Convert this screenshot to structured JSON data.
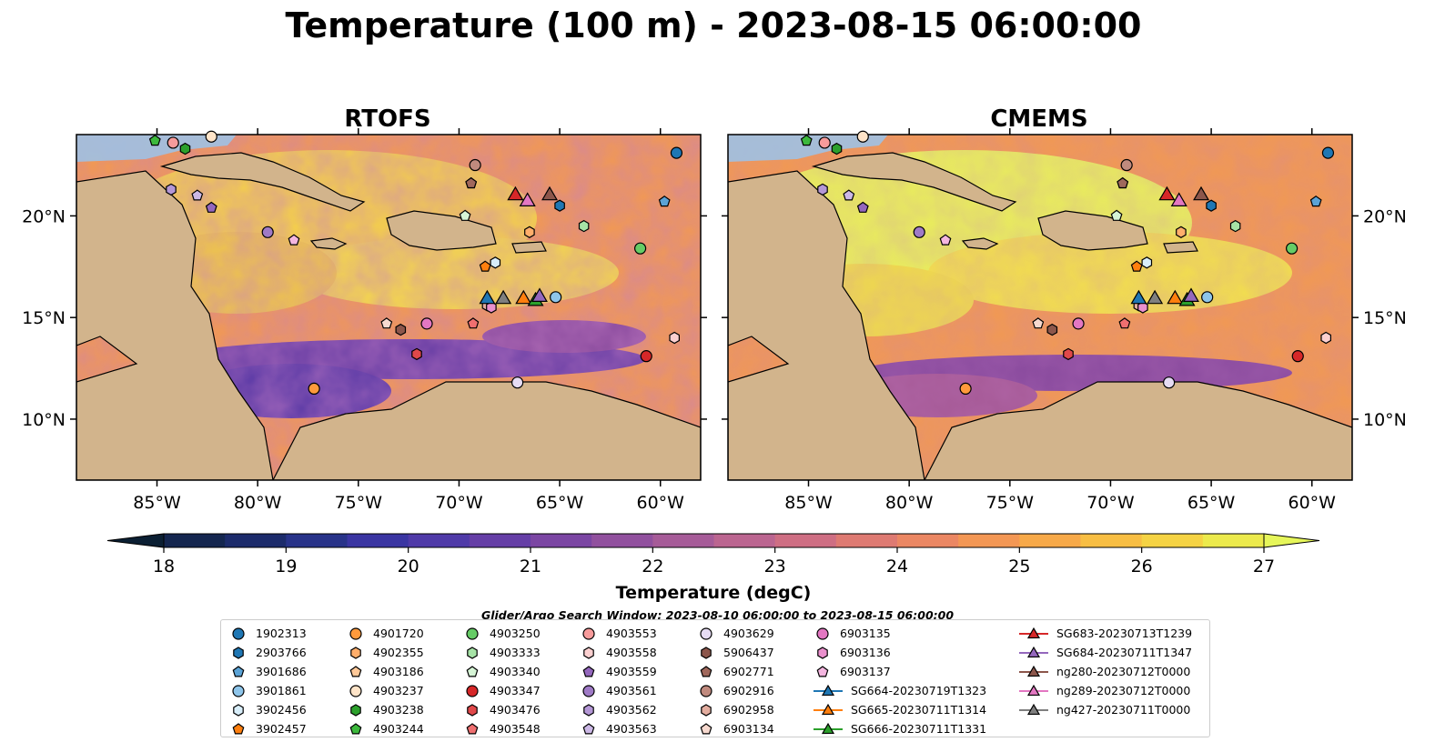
{
  "title": "Temperature (100 m) - 2023-08-15 06:00:00",
  "panels": [
    {
      "title": "RTOFS"
    },
    {
      "title": "CMEMS"
    }
  ],
  "axes": {
    "lon_ticks": [
      -85,
      -80,
      -75,
      -70,
      -65,
      -60
    ],
    "lon_labels": [
      "85°W",
      "80°W",
      "75°W",
      "70°W",
      "65°W",
      "60°W"
    ],
    "lat_ticks": [
      10,
      15,
      20
    ],
    "lat_labels": [
      "10°N",
      "15°N",
      "20°N"
    ],
    "lon_range": [
      -89,
      -58
    ],
    "lat_range": [
      7,
      24
    ]
  },
  "colorbar": {
    "label": "Temperature (degC)",
    "min": 18,
    "max": 27,
    "ticks": [
      "18",
      "19",
      "20",
      "21",
      "22",
      "23",
      "24",
      "25",
      "26",
      "27"
    ],
    "colors": [
      "#0b1f33",
      "#14264f",
      "#1c2b6b",
      "#283389",
      "#3a35a2",
      "#4f3aa8",
      "#653ea6",
      "#7b46a3",
      "#91509e",
      "#a65b98",
      "#bb6590",
      "#ce6e83",
      "#de7a72",
      "#eb8763",
      "#f39754",
      "#f7a949",
      "#f8be43",
      "#f5d344",
      "#ecea4c",
      "#e6f65a"
    ]
  },
  "search_window": "Glider/Argo Search Window: 2023-08-10 06:00:00 to 2023-08-15 06:00:00",
  "legend": [
    [
      {
        "label": "1902313",
        "marker": "circle",
        "color": "#1f77b4"
      },
      {
        "label": "2903766",
        "marker": "hexagon",
        "color": "#1f77b4"
      },
      {
        "label": "3901686",
        "marker": "pentagon",
        "color": "#5ba3d6"
      },
      {
        "label": "3901861",
        "marker": "circle",
        "color": "#8ec5ea"
      },
      {
        "label": "3902456",
        "marker": "hexagon",
        "color": "#d8eefa"
      },
      {
        "label": "3902457",
        "marker": "pentagon",
        "color": "#ff7f0e"
      }
    ],
    [
      {
        "label": "4901720",
        "marker": "circle",
        "color": "#ff9a3c"
      },
      {
        "label": "4902355",
        "marker": "hexagon",
        "color": "#ffae6b"
      },
      {
        "label": "4903186",
        "marker": "pentagon",
        "color": "#ffc999"
      },
      {
        "label": "4903237",
        "marker": "circle",
        "color": "#ffe4c8"
      },
      {
        "label": "4903238",
        "marker": "hexagon",
        "color": "#2ca02c"
      },
      {
        "label": "4903244",
        "marker": "pentagon",
        "color": "#3cb83c"
      }
    ],
    [
      {
        "label": "4903250",
        "marker": "circle",
        "color": "#66cc66"
      },
      {
        "label": "4903333",
        "marker": "hexagon",
        "color": "#a6e3a6"
      },
      {
        "label": "4903340",
        "marker": "pentagon",
        "color": "#d6f5d6"
      },
      {
        "label": "4903347",
        "marker": "circle",
        "color": "#d62728"
      },
      {
        "label": "4903476",
        "marker": "hexagon",
        "color": "#e0484a"
      },
      {
        "label": "4903548",
        "marker": "pentagon",
        "color": "#ef6f70"
      }
    ],
    [
      {
        "label": "4903553",
        "marker": "circle",
        "color": "#f79b9b"
      },
      {
        "label": "4903558",
        "marker": "hexagon",
        "color": "#fcd0d0"
      },
      {
        "label": "4903559",
        "marker": "pentagon",
        "color": "#9467bd"
      },
      {
        "label": "4903561",
        "marker": "circle",
        "color": "#9f7ac6"
      },
      {
        "label": "4903562",
        "marker": "hexagon",
        "color": "#b497d6"
      },
      {
        "label": "4903563",
        "marker": "pentagon",
        "color": "#ccb8e6"
      }
    ],
    [
      {
        "label": "4903629",
        "marker": "circle",
        "color": "#e6dcf4"
      },
      {
        "label": "5906437",
        "marker": "hexagon",
        "color": "#8c564b"
      },
      {
        "label": "6902771",
        "marker": "pentagon",
        "color": "#a0685c"
      },
      {
        "label": "6902916",
        "marker": "circle",
        "color": "#c08a7e"
      },
      {
        "label": "6902958",
        "marker": "hexagon",
        "color": "#e3ad9f"
      },
      {
        "label": "6903134",
        "marker": "pentagon",
        "color": "#f7d9cf"
      }
    ],
    [
      {
        "label": "6903135",
        "marker": "circle",
        "color": "#e377c2"
      },
      {
        "label": "6903136",
        "marker": "hexagon",
        "color": "#ea90cd"
      },
      {
        "label": "6903137",
        "marker": "pentagon",
        "color": "#f4b6e0"
      },
      {
        "label": "SG664-20230719T1323",
        "marker": "triangle",
        "color": "#1f77b4"
      },
      {
        "label": "SG665-20230711T1314",
        "marker": "triangle",
        "color": "#ff7f0e"
      },
      {
        "label": "SG666-20230711T1331",
        "marker": "triangle",
        "color": "#2ca02c"
      }
    ],
    [
      {
        "label": "SG683-20230713T1239",
        "marker": "triangle",
        "color": "#d62728"
      },
      {
        "label": "SG684-20230711T1347",
        "marker": "triangle",
        "color": "#9467bd"
      },
      {
        "label": "ng280-20230712T0000",
        "marker": "triangle",
        "color": "#8c564b"
      },
      {
        "label": "ng289-20230712T0000",
        "marker": "triangle",
        "color": "#e377c2"
      },
      {
        "label": "ng427-20230711T0000",
        "marker": "triangle",
        "color": "#7f7f7f"
      }
    ]
  ],
  "floats": [
    {
      "id": "1902313",
      "lon": -59.2,
      "lat": 23.1
    },
    {
      "id": "2903766",
      "lon": -65.0,
      "lat": 20.5
    },
    {
      "id": "3901686",
      "lon": -59.8,
      "lat": 20.7
    },
    {
      "id": "3901861",
      "lon": -65.2,
      "lat": 16.0
    },
    {
      "id": "3902456",
      "lon": -68.2,
      "lat": 17.7
    },
    {
      "id": "3902457",
      "lon": -68.7,
      "lat": 17.5
    },
    {
      "id": "4901720",
      "lon": -77.2,
      "lat": 11.5
    },
    {
      "id": "4902355",
      "lon": -66.5,
      "lat": 19.2
    },
    {
      "id": "4903186",
      "lon": -69.4,
      "lat": 21.6
    },
    {
      "id": "4903237",
      "lon": -82.3,
      "lat": 23.9
    },
    {
      "id": "4903238",
      "lon": -83.6,
      "lat": 23.3
    },
    {
      "id": "4903244",
      "lon": -85.1,
      "lat": 23.7
    },
    {
      "id": "4903250",
      "lon": -61.0,
      "lat": 18.4
    },
    {
      "id": "4903333",
      "lon": -63.8,
      "lat": 19.5
    },
    {
      "id": "4903340",
      "lon": -69.7,
      "lat": 20.0
    },
    {
      "id": "4903347",
      "lon": -60.7,
      "lat": 13.1
    },
    {
      "id": "4903476",
      "lon": -72.1,
      "lat": 13.2
    },
    {
      "id": "4903548",
      "lon": -69.3,
      "lat": 14.7
    },
    {
      "id": "4903553",
      "lon": -84.2,
      "lat": 23.6
    },
    {
      "id": "4903558",
      "lon": -59.3,
      "lat": 14.0
    },
    {
      "id": "4903559",
      "lon": -82.3,
      "lat": 20.4
    },
    {
      "id": "4903561",
      "lon": -79.5,
      "lat": 19.2
    },
    {
      "id": "4903562",
      "lon": -84.3,
      "lat": 21.3
    },
    {
      "id": "4903563",
      "lon": -83.0,
      "lat": 21.0
    },
    {
      "id": "4903629",
      "lon": -67.1,
      "lat": 11.8
    },
    {
      "id": "5906437",
      "lon": -72.9,
      "lat": 14.4
    },
    {
      "id": "6902771",
      "lon": -69.4,
      "lat": 21.6
    },
    {
      "id": "6902916",
      "lon": -69.2,
      "lat": 22.5
    },
    {
      "id": "6902958",
      "lon": -68.6,
      "lat": 15.6
    },
    {
      "id": "6903134",
      "lon": -73.6,
      "lat": 14.7
    },
    {
      "id": "6903135",
      "lon": -71.6,
      "lat": 14.7
    },
    {
      "id": "6903136",
      "lon": -68.4,
      "lat": 15.5
    },
    {
      "id": "6903137",
      "lon": -78.2,
      "lat": 18.8
    }
  ],
  "gliders": [
    {
      "id": "SG664-20230719T1323",
      "lon": -68.6,
      "lat": 15.9
    },
    {
      "id": "SG665-20230711T1314",
      "lon": -66.8,
      "lat": 15.9
    },
    {
      "id": "SG666-20230711T1331",
      "lon": -66.2,
      "lat": 15.8
    },
    {
      "id": "SG683-20230713T1239",
      "lon": -67.2,
      "lat": 21.0
    },
    {
      "id": "SG684-20230711T1347",
      "lon": -66.0,
      "lat": 16.0
    },
    {
      "id": "ng280-20230712T0000",
      "lon": -65.5,
      "lat": 21.0
    },
    {
      "id": "ng289-20230712T0000",
      "lon": -66.6,
      "lat": 20.7
    },
    {
      "id": "ng427-20230711T0000",
      "lon": -67.8,
      "lat": 15.9
    }
  ]
}
